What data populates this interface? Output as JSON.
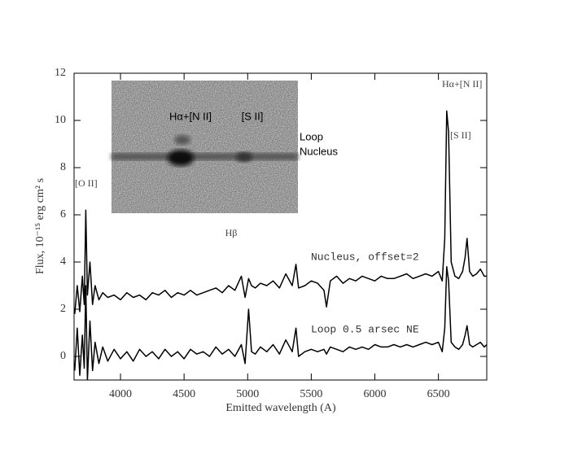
{
  "chart_data": {
    "type": "line",
    "xlabel": "Emitted wavelength (A)",
    "ylabel": "Flux, 10⁻¹⁵ erg cm² s",
    "xlim": [
      3635,
      6880
    ],
    "ylim": [
      -1,
      12
    ],
    "xticks": [
      4000,
      4500,
      5000,
      5500,
      6000,
      6500
    ],
    "yticks": [
      0,
      2,
      4,
      6,
      8,
      10,
      12
    ],
    "annotations": [
      "[O II]",
      "Hβ",
      "Hα+[N II]",
      "[S II]"
    ],
    "inset_labels": [
      "Hα+[N II]",
      "[S II]",
      "Loop",
      "Nucleus"
    ],
    "x": [
      3640,
      3660,
      3680,
      3700,
      3715,
      3727,
      3740,
      3760,
      3780,
      3800,
      3830,
      3860,
      3900,
      3950,
      4000,
      4050,
      4100,
      4150,
      4200,
      4250,
      4300,
      4350,
      4400,
      4450,
      4500,
      4550,
      4600,
      4650,
      4700,
      4750,
      4800,
      4850,
      4900,
      4950,
      4980,
      5007,
      5030,
      5060,
      5100,
      5150,
      5200,
      5250,
      5300,
      5350,
      5380,
      5400,
      5450,
      5500,
      5550,
      5600,
      5620,
      5650,
      5700,
      5750,
      5800,
      5850,
      5900,
      5950,
      6000,
      6050,
      6100,
      6150,
      6200,
      6250,
      6300,
      6350,
      6400,
      6450,
      6500,
      6530,
      6550,
      6565,
      6580,
      6600,
      6630,
      6660,
      6690,
      6710,
      6725,
      6745,
      6770,
      6800,
      6830,
      6860,
      6880
    ],
    "series": [
      {
        "name": "Nucleus, offset=2",
        "color": "#000000",
        "values": [
          1.8,
          3.0,
          1.9,
          3.4,
          2.2,
          6.2,
          2.6,
          4.0,
          2.2,
          3.0,
          2.4,
          2.7,
          2.5,
          2.6,
          2.4,
          2.7,
          2.5,
          2.6,
          2.4,
          2.7,
          2.6,
          2.8,
          2.5,
          2.7,
          2.6,
          2.8,
          2.6,
          2.7,
          2.8,
          2.9,
          2.7,
          3.0,
          2.8,
          3.4,
          2.5,
          3.3,
          3.0,
          2.9,
          3.1,
          3.0,
          3.2,
          2.9,
          3.5,
          3.0,
          3.9,
          2.9,
          3.0,
          3.2,
          3.1,
          2.8,
          2.1,
          3.2,
          3.4,
          3.1,
          3.3,
          3.2,
          3.4,
          3.3,
          3.2,
          3.4,
          3.3,
          3.3,
          3.4,
          3.5,
          3.3,
          3.4,
          3.5,
          3.4,
          3.6,
          3.2,
          5.0,
          10.4,
          9.5,
          4.0,
          3.4,
          3.3,
          3.6,
          4.2,
          5.0,
          3.6,
          3.4,
          3.5,
          3.7,
          3.4,
          3.4
        ]
      },
      {
        "name": "Loop 0.5 arsec NE",
        "color": "#000000",
        "values": [
          -0.6,
          1.2,
          -0.8,
          0.9,
          -0.5,
          3.0,
          -1.0,
          1.5,
          -0.6,
          0.6,
          -0.3,
          0.4,
          -0.2,
          0.3,
          -0.1,
          0.2,
          -0.2,
          0.3,
          0.0,
          0.2,
          -0.1,
          0.3,
          0.0,
          0.2,
          -0.1,
          0.3,
          0.1,
          0.2,
          0.0,
          0.4,
          0.1,
          0.3,
          0.0,
          0.5,
          -0.3,
          2.0,
          0.2,
          0.1,
          0.4,
          0.2,
          0.5,
          0.1,
          0.7,
          0.2,
          1.2,
          0.0,
          0.2,
          0.3,
          0.2,
          0.3,
          0.1,
          0.4,
          0.3,
          0.2,
          0.4,
          0.3,
          0.4,
          0.3,
          0.5,
          0.4,
          0.4,
          0.5,
          0.4,
          0.5,
          0.4,
          0.5,
          0.6,
          0.5,
          0.6,
          0.2,
          1.2,
          3.8,
          3.2,
          0.6,
          0.4,
          0.3,
          0.5,
          0.9,
          1.3,
          0.5,
          0.4,
          0.5,
          0.6,
          0.4,
          0.5
        ]
      }
    ]
  }
}
